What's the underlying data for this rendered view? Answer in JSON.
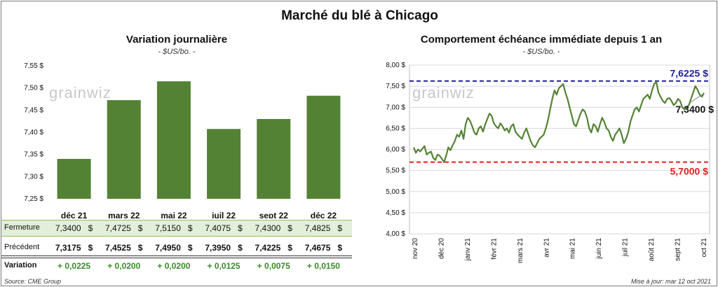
{
  "title": "Marché du blé à Chicago",
  "left": {
    "title": "Variation journalière",
    "unit": "- $US/bo. -",
    "watermark": "grainwiz"
  },
  "right": {
    "title": "Comportement échéance immédiate depuis 1 an",
    "unit": "- $US/bo. -",
    "watermark": "grainwiz",
    "high_label": "7,6225 $",
    "low_label": "5,7000 $",
    "last_label": "7,3400 $"
  },
  "table": {
    "row1_label": "Fermeture",
    "row2_label": "Précédent",
    "row3_label": "Variation",
    "currency": "$",
    "fermeture": [
      "7,3400",
      "7,4725",
      "7,5150",
      "7,4075",
      "7,4300",
      "7,4825"
    ],
    "precedent": [
      "7,3175",
      "7,4525",
      "7,4950",
      "7,3950",
      "7,4225",
      "7,4675"
    ],
    "variation": [
      "+ 0,0225",
      "+ 0,0200",
      "+ 0,0200",
      "+ 0,0125",
      "+ 0,0075",
      "+ 0,0150"
    ]
  },
  "footer": {
    "source": "Source: CME Group",
    "update": "Mise à jour: mar 12 oct 2021"
  },
  "colors": {
    "bar": "#548235",
    "line": "#548235",
    "high": "#1f1fa0",
    "low": "#e02020",
    "variation": "#3a8a2a"
  },
  "chart_data": [
    {
      "type": "bar",
      "title": "Variation journalière",
      "categories": [
        "déc 21",
        "mars 22",
        "mai 22",
        "juil 22",
        "sept 22",
        "déc 22"
      ],
      "values": [
        7.34,
        7.4725,
        7.515,
        7.4075,
        7.43,
        7.4825
      ],
      "ylim": [
        7.25,
        7.55
      ],
      "yticks": [
        7.25,
        7.3,
        7.35,
        7.4,
        7.45,
        7.5,
        7.55
      ],
      "ytick_labels": [
        "7,25 $",
        "7,30 $",
        "7,35 $",
        "7,40 $",
        "7,45 $",
        "7,50 $",
        "7,55 $"
      ],
      "grid": false
    },
    {
      "type": "line",
      "title": "Comportement échéance immédiate depuis 1 an",
      "ylim": [
        4.0,
        8.0
      ],
      "yticks": [
        4.0,
        4.5,
        5.0,
        5.5,
        6.0,
        6.5,
        7.0,
        7.5,
        8.0
      ],
      "ytick_labels": [
        "4,00 $",
        "4,50 $",
        "5,00 $",
        "5,50 $",
        "6,00 $",
        "6,50 $",
        "7,00 $",
        "7,50 $",
        "8,00 $"
      ],
      "xlabels": [
        "nov 20",
        "déc 20",
        "janv 21",
        "févr 21",
        "mars 21",
        "avr 21",
        "mai 21",
        "juin 21",
        "juil 21",
        "août 21",
        "sept 21",
        "oct 21"
      ],
      "high": 7.6225,
      "low": 5.7,
      "last": 7.34,
      "grid": true,
      "values": [
        6.05,
        5.92,
        6.0,
        5.95,
        6.02,
        6.08,
        5.88,
        5.92,
        5.95,
        5.8,
        5.75,
        5.88,
        5.85,
        5.78,
        5.7,
        5.85,
        6.05,
        5.98,
        6.1,
        6.2,
        6.35,
        6.3,
        6.45,
        6.25,
        6.6,
        6.75,
        6.68,
        6.55,
        6.4,
        6.35,
        6.5,
        6.55,
        6.42,
        6.6,
        6.72,
        6.85,
        6.8,
        6.62,
        6.55,
        6.5,
        6.62,
        6.55,
        6.45,
        6.5,
        6.4,
        6.55,
        6.6,
        6.42,
        6.35,
        6.3,
        6.25,
        6.4,
        6.5,
        6.35,
        6.2,
        6.1,
        6.05,
        6.15,
        6.25,
        6.3,
        6.35,
        6.5,
        6.7,
        6.95,
        7.2,
        7.4,
        7.3,
        7.45,
        7.5,
        7.55,
        7.35,
        7.2,
        7.0,
        6.8,
        6.6,
        6.55,
        6.7,
        6.85,
        6.95,
        6.9,
        6.75,
        6.5,
        6.4,
        6.6,
        6.55,
        6.42,
        6.6,
        6.75,
        6.65,
        6.5,
        6.45,
        6.3,
        6.2,
        6.35,
        6.42,
        6.5,
        6.35,
        6.15,
        6.25,
        6.4,
        6.65,
        6.8,
        6.95,
        7.0,
        6.9,
        7.05,
        7.2,
        7.25,
        7.3,
        7.2,
        7.4,
        7.55,
        7.6,
        7.35,
        7.25,
        7.15,
        7.1,
        7.2,
        7.22,
        7.15,
        7.05,
        7.1,
        7.2,
        7.15,
        7.0,
        6.95,
        7.0,
        7.05,
        7.2,
        7.35,
        7.5,
        7.42,
        7.3,
        7.25,
        7.34
      ]
    }
  ]
}
